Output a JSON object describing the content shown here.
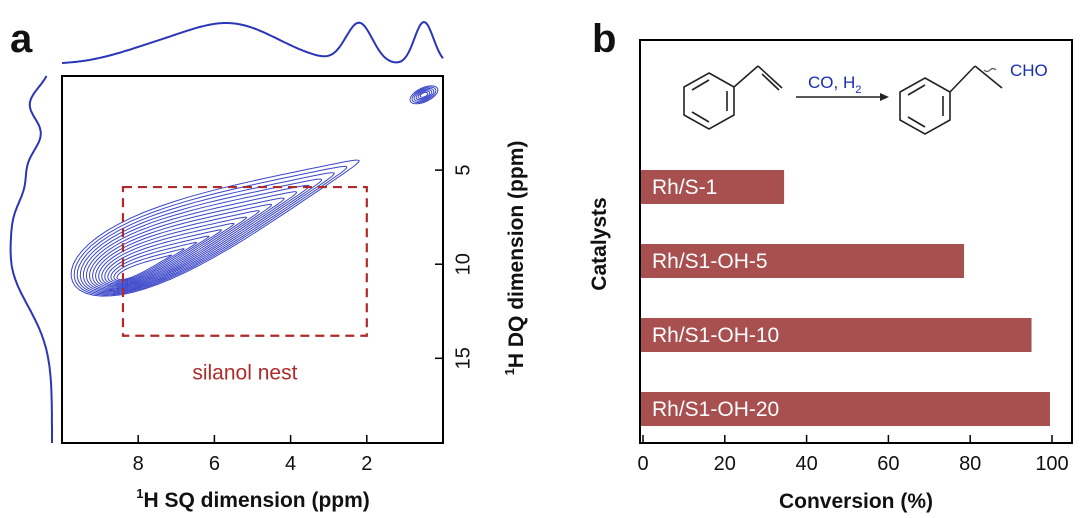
{
  "panels": {
    "a": "a",
    "b": "b"
  },
  "panel_a": {
    "xlabel_sup": "1",
    "xlabel_main": "H SQ dimension (ppm)",
    "ylabel_sup": "1",
    "ylabel_main": "H DQ dimension (ppm)",
    "annotation": "silanol nest"
  },
  "scheme": {
    "reagents": "CO, H",
    "reagents_sub": "2",
    "product_group": "CHO"
  },
  "colors": {
    "bar": "#a84f4f",
    "contour": "#3b46c8",
    "box": "#b02a2a"
  },
  "chart_data": [
    {
      "type": "heatmap",
      "xlabel": "1H SQ dimension (ppm)",
      "ylabel": "1H DQ dimension (ppm)",
      "xlim": [
        10,
        0
      ],
      "ylim": [
        19.5,
        0
      ],
      "x_ticks": [
        8,
        6,
        4,
        2
      ],
      "y_ticks": [
        5,
        10,
        15
      ],
      "peaks": [
        {
          "sq": 4.8,
          "dq": 9.5
        },
        {
          "sq": 2.2,
          "dq": 4.4
        },
        {
          "sq": 0.5,
          "dq": 1.0
        }
      ],
      "annotation": "silanol nest",
      "annotation_box": {
        "sq": [
          8.4,
          2.0
        ],
        "dq": [
          5.9,
          13.8
        ]
      },
      "projection_top_peaks": [
        5.5,
        2.2,
        0.5
      ],
      "projection_left_peaks": [
        1.5,
        5.0,
        10.0
      ]
    },
    {
      "type": "bar",
      "orientation": "horizontal",
      "xlabel": "Conversion (%)",
      "ylabel": "Catalysts",
      "xlim": [
        0,
        100
      ],
      "x_ticks": [
        0,
        20,
        40,
        60,
        80,
        100
      ],
      "categories": [
        "Rh/S-1",
        "Rh/S1-OH-5",
        "Rh/S1-OH-10",
        "Rh/S1-OH-20"
      ],
      "values": [
        34.5,
        78.5,
        95,
        99.5
      ]
    }
  ]
}
